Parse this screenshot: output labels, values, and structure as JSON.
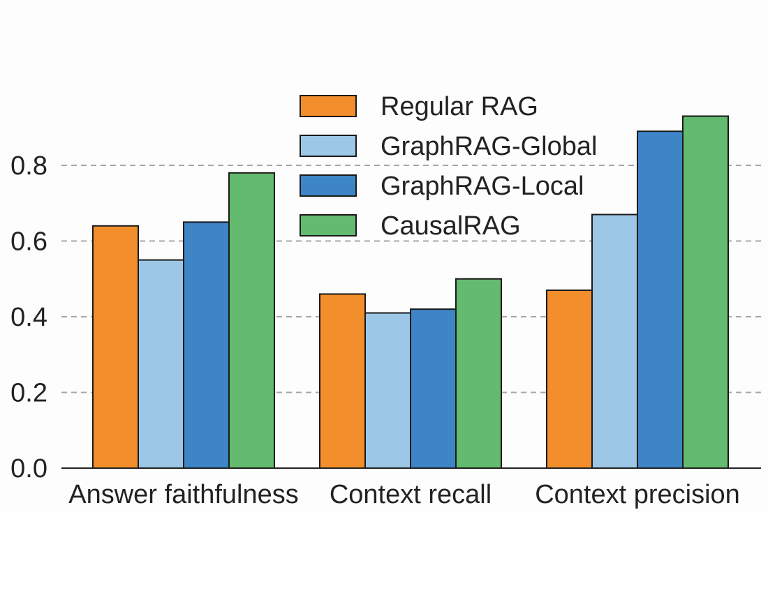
{
  "chart_data": {
    "type": "bar",
    "title": "",
    "xlabel": "",
    "ylabel": "",
    "ylim": [
      0,
      1.0
    ],
    "yticks": [
      0.0,
      0.2,
      0.4,
      0.6,
      0.8
    ],
    "ytick_labels": [
      "0.0",
      "0.2",
      "0.4",
      "0.6",
      "0.8"
    ],
    "grid": "horizontal dashed",
    "legend_position": "top-center",
    "categories": [
      "Answer faithfulness",
      "Context recall",
      "Context precision"
    ],
    "series": [
      {
        "name": "Regular RAG",
        "color": "#f28e2b",
        "values": [
          0.64,
          0.46,
          0.47
        ]
      },
      {
        "name": "GraphRAG-Global",
        "color": "#9cc7e6",
        "values": [
          0.55,
          0.41,
          0.67
        ]
      },
      {
        "name": "GraphRAG-Local",
        "color": "#3d85c6",
        "values": [
          0.65,
          0.42,
          0.89
        ]
      },
      {
        "name": "CausalRAG",
        "color": "#63bb6f",
        "values": [
          0.78,
          0.5,
          0.93
        ]
      }
    ]
  }
}
